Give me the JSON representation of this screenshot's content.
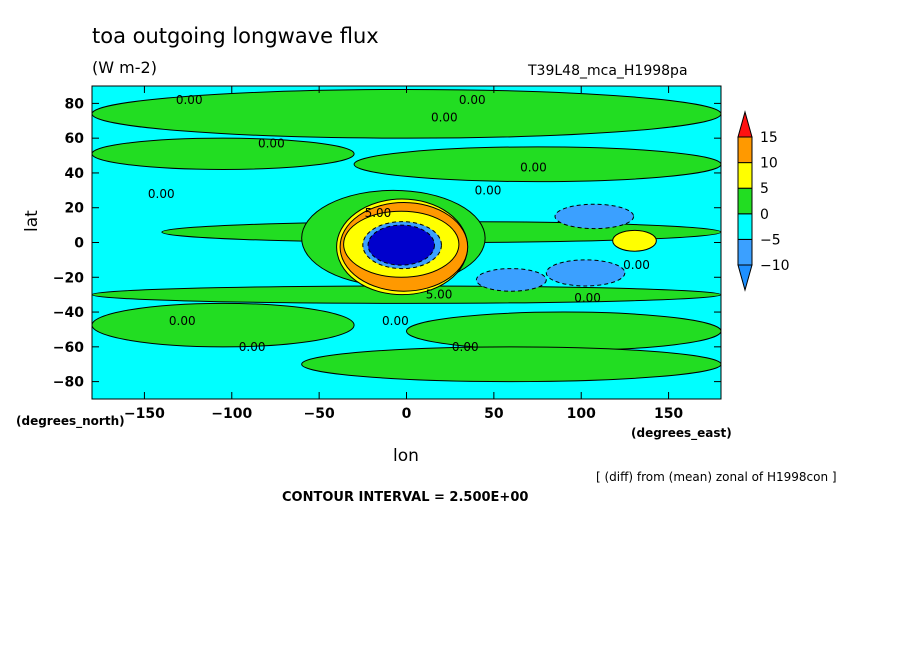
{
  "header": {
    "title": "toa outgoing longwave flux",
    "units": "(W m-2)",
    "run_id": "T39L48_mca_H1998pa"
  },
  "axes": {
    "x_label": "lon",
    "y_label": "lat",
    "x_units": "(degrees_east)",
    "y_units": "(degrees_north)"
  },
  "footer": {
    "note": "[ (diff) from (mean) zonal of H1998con ]",
    "contour_interval": "CONTOUR INTERVAL = 2.500E+00"
  },
  "colors": {
    "below_neg10": "#1e90ff",
    "neg10_to_neg5": "#3ba0ff",
    "neg5_to_0": "#00ffff",
    "0_to_5": "#22dd22",
    "5_to_10": "#ffff00",
    "10_to_15": "#ff9900",
    "above_15": "#ff1111",
    "strong_negative_core": "#0000cc"
  },
  "chart_data": {
    "type": "heatmap",
    "plot": "filled contour map",
    "xlim": [
      -180,
      180
    ],
    "ylim": [
      -90,
      90
    ],
    "x_ticks": [
      -150,
      -100,
      -50,
      0,
      50,
      100,
      150
    ],
    "y_ticks": [
      -80,
      -60,
      -40,
      -20,
      0,
      20,
      40,
      60,
      80
    ],
    "colorbar": {
      "levels": [
        -10,
        -5,
        0,
        5,
        10,
        15
      ],
      "labels": [
        "-10",
        "-5",
        "0",
        "5",
        "10",
        "15"
      ],
      "extend": "both"
    },
    "contour_interval": 2.5,
    "contour_labels": [
      {
        "lon": -132,
        "lat": 82,
        "text": "0.00"
      },
      {
        "lon": 30,
        "lat": 82,
        "text": "0.00"
      },
      {
        "lon": 14,
        "lat": 72,
        "text": "0.00"
      },
      {
        "lon": -85,
        "lat": 57,
        "text": "0.00"
      },
      {
        "lon": 65,
        "lat": 43,
        "text": "0.00"
      },
      {
        "lon": -148,
        "lat": 28,
        "text": "0.00"
      },
      {
        "lon": 39,
        "lat": 30,
        "text": "0.00"
      },
      {
        "lon": -24,
        "lat": 17,
        "text": "5.00"
      },
      {
        "lon": 124,
        "lat": -13,
        "text": "0.00"
      },
      {
        "lon": 11,
        "lat": -30,
        "text": "5.00"
      },
      {
        "lon": 96,
        "lat": -32,
        "text": "0.00"
      },
      {
        "lon": -136,
        "lat": -45,
        "text": "0.00"
      },
      {
        "lon": -14,
        "lat": -45,
        "text": "0.00"
      },
      {
        "lon": -96,
        "lat": -60,
        "text": "0.00"
      },
      {
        "lon": 26,
        "lat": -60,
        "text": "0.00"
      }
    ],
    "features": [
      {
        "lon_min": -180,
        "lon_max": 180,
        "lat_min": -90,
        "lat_max": 90,
        "level": -2.5
      },
      {
        "lon_min": -180,
        "lon_max": 180,
        "lat_min": 60,
        "lat_max": 88,
        "level": 2.5
      },
      {
        "lon_min": -180,
        "lon_max": -30,
        "lat_min": 42,
        "lat_max": 60,
        "level": 2.5
      },
      {
        "lon_min": -30,
        "lon_max": 180,
        "lat_min": 35,
        "lat_max": 55,
        "level": 2.5
      },
      {
        "lon_min": -180,
        "lon_max": 180,
        "lat_min": -35,
        "lat_max": -25,
        "level": 2.5
      },
      {
        "lon_min": -180,
        "lon_max": -30,
        "lat_min": -60,
        "lat_max": -35,
        "level": 2.5
      },
      {
        "lon_min": 0,
        "lon_max": 180,
        "lat_min": -62,
        "lat_max": -40,
        "level": 2.5
      },
      {
        "lon_min": -60,
        "lon_max": 180,
        "lat_min": -80,
        "lat_max": -60,
        "level": 2.5
      },
      {
        "lon_min": -140,
        "lon_max": 180,
        "lat_min": 0,
        "lat_max": 12,
        "level": 2.5
      },
      {
        "lon_min": -60,
        "lon_max": 45,
        "lat_min": -25,
        "lat_max": 30,
        "level": 2.5
      },
      {
        "lon_min": -40,
        "lon_max": 35,
        "lat_min": -30,
        "lat_max": 25,
        "level": 7.5
      },
      {
        "lon_min": -38,
        "lon_max": 35,
        "lat_min": -28,
        "lat_max": 23,
        "level": 12.5
      },
      {
        "lon_min": -36,
        "lon_max": 30,
        "lat_min": -20,
        "lat_max": 18,
        "level": 7.5
      },
      {
        "lon_min": -25,
        "lon_max": 20,
        "lat_min": -15,
        "lat_max": 12,
        "level": -7.5
      },
      {
        "lon_min": -22,
        "lon_max": 16,
        "lat_min": -13,
        "lat_max": 10,
        "level": -12.5
      },
      {
        "lon_min": 118,
        "lon_max": 143,
        "lat_min": -5,
        "lat_max": 7,
        "level": 7.5
      },
      {
        "lon_min": 85,
        "lon_max": 130,
        "lat_min": 8,
        "lat_max": 22,
        "level": -7.5
      },
      {
        "lon_min": 40,
        "lon_max": 80,
        "lat_min": -28,
        "lat_max": -15,
        "level": -7.5
      },
      {
        "lon_min": 80,
        "lon_max": 125,
        "lat_min": -25,
        "lat_max": -10,
        "level": -7.5
      }
    ]
  }
}
